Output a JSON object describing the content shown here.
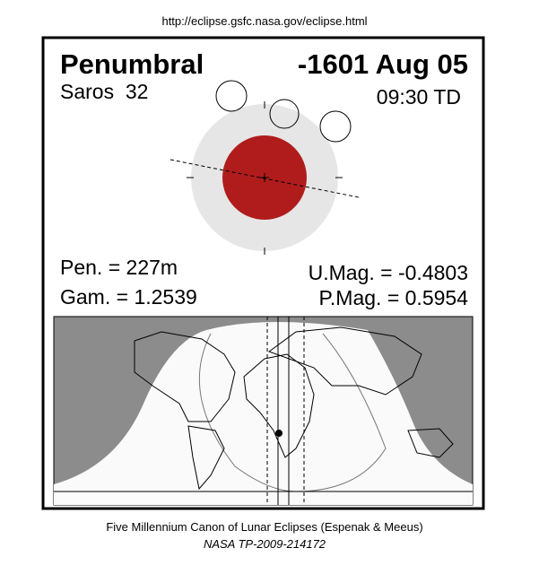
{
  "source_url": "http://eclipse.gsfc.nasa.gov/eclipse.html",
  "header": {
    "eclipse_type": "Penumbral",
    "date": "-1601 Aug 05",
    "saros": "Saros  32",
    "time": "09:30 TD"
  },
  "parameters": {
    "pen": "Pen. = 227m",
    "gam": "Gam. = 1.2539",
    "umag": "U.Mag. = -0.4803",
    "pmag": "P.Mag. = 0.5954"
  },
  "footer": {
    "credit": "Five Millennium Canon of Lunar Eclipses (Espenak & Meeus)",
    "reference": "NASA TP-2009-214172"
  }
}
